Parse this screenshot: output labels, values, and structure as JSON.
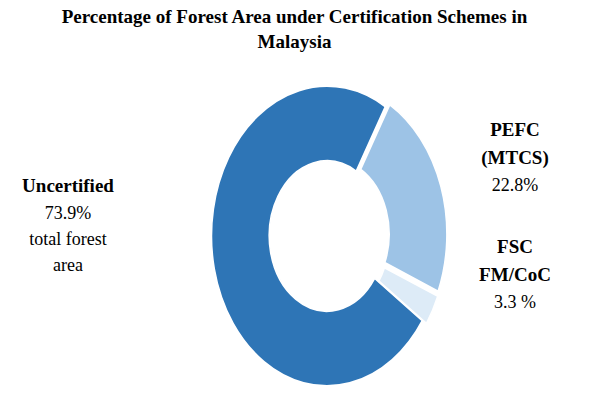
{
  "chart_data": {
    "type": "pie",
    "title": "Percentage of Forest Area under Certification Schemes in Malaysia",
    "categories": [
      "Uncertified",
      "PEFC (MTCS)",
      "FSC FM/CoC"
    ],
    "values": [
      73.9,
      22.8,
      3.3
    ],
    "value_labels": [
      "73.9%",
      "22.8%",
      "3.3 %"
    ],
    "colors": [
      "#2e75b6",
      "#9dc3e6",
      "#ddebf7"
    ],
    "data_labels": true,
    "annotations": [
      "total forest area"
    ]
  }
}
